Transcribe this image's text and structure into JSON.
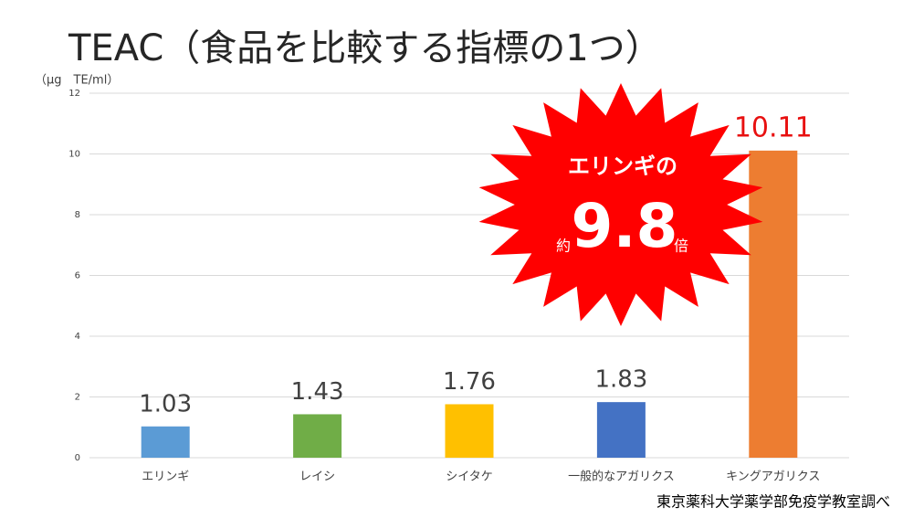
{
  "chart_data": {
    "type": "bar",
    "title": "TEAC（食品を比較する指標の1つ）",
    "y_axis_label": "（μg　TE/ml）",
    "source": "東京薬科大学薬学部免疫学教室調べ",
    "categories": [
      "エリンギ",
      "レイシ",
      "シイタケ",
      "一般的なアガリクス",
      "キングアガリクス"
    ],
    "values": [
      1.03,
      1.43,
      1.76,
      1.83,
      10.11
    ],
    "colors": [
      "#5b9bd5",
      "#70ad47",
      "#ffc000",
      "#4472c4",
      "#ed7d31"
    ],
    "value_label_colors": [
      "#404040",
      "#404040",
      "#404040",
      "#404040",
      "#e81010"
    ],
    "ylim": [
      0,
      12
    ],
    "yticks": [
      0,
      2,
      4,
      6,
      8,
      10,
      12
    ],
    "grid": true,
    "annotation": {
      "line1": "エリンギの",
      "prefix": "約",
      "ratio": "9.8",
      "suffix": "倍"
    }
  }
}
